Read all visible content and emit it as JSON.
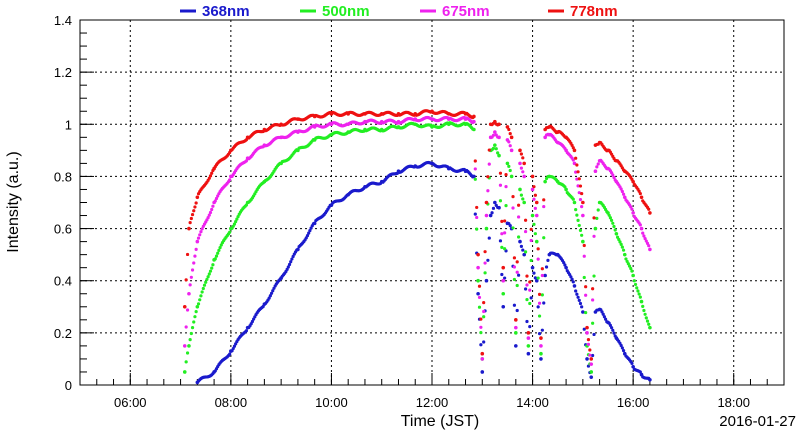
{
  "chart_data": {
    "type": "scatter",
    "xlabel": "Time (JST)",
    "ylabel": "Intensity (a.u.)",
    "date_label": "2016-01-27",
    "xlim": [
      "05:00",
      "19:00"
    ],
    "ylim": [
      0,
      1.4
    ],
    "x_ticks": [
      "06:00",
      "08:00",
      "10:00",
      "12:00",
      "14:00",
      "16:00",
      "18:00"
    ],
    "y_ticks": [
      "0",
      "0.2",
      "0.4",
      "0.6",
      "0.8",
      "1",
      "1.2",
      "1.4"
    ],
    "grid": true,
    "legend_position": "top",
    "series": [
      {
        "name": "368nm",
        "color": "#1a1acc",
        "points": [
          [
            "07:20",
            0.01
          ],
          [
            "07:40",
            0.05
          ],
          [
            "08:00",
            0.13
          ],
          [
            "08:20",
            0.22
          ],
          [
            "08:40",
            0.31
          ],
          [
            "09:00",
            0.41
          ],
          [
            "09:20",
            0.52
          ],
          [
            "09:40",
            0.62
          ],
          [
            "10:00",
            0.69
          ],
          [
            "10:20",
            0.73
          ],
          [
            "10:40",
            0.76
          ],
          [
            "11:00",
            0.78
          ],
          [
            "11:20",
            0.82
          ],
          [
            "11:40",
            0.84
          ],
          [
            "12:00",
            0.85
          ],
          [
            "12:20",
            0.83
          ],
          [
            "12:40",
            0.82
          ],
          [
            "12:50",
            0.8
          ],
          [
            "12:55",
            0.35
          ],
          [
            "13:00",
            0.05
          ],
          [
            "13:05",
            0.4
          ],
          [
            "13:10",
            0.65
          ],
          [
            "13:15",
            0.7
          ],
          [
            "13:20",
            0.68
          ],
          [
            "13:25",
            0.3
          ],
          [
            "13:30",
            0.62
          ],
          [
            "13:35",
            0.6
          ],
          [
            "13:40",
            0.15
          ],
          [
            "13:45",
            0.55
          ],
          [
            "13:50",
            0.5
          ],
          [
            "13:55",
            0.12
          ],
          [
            "14:00",
            0.45
          ],
          [
            "14:05",
            0.4
          ],
          [
            "14:10",
            0.1
          ],
          [
            "14:15",
            0.42
          ],
          [
            "14:20",
            0.5
          ],
          [
            "14:30",
            0.5
          ],
          [
            "14:40",
            0.45
          ],
          [
            "14:50",
            0.38
          ],
          [
            "15:00",
            0.28
          ],
          [
            "15:05",
            0.1
          ],
          [
            "15:10",
            0.03
          ],
          [
            "15:15",
            0.28
          ],
          [
            "15:20",
            0.29
          ],
          [
            "15:30",
            0.24
          ],
          [
            "15:40",
            0.18
          ],
          [
            "15:50",
            0.12
          ],
          [
            "16:00",
            0.07
          ],
          [
            "16:10",
            0.04
          ],
          [
            "16:20",
            0.02
          ]
        ]
      },
      {
        "name": "500nm",
        "color": "#22ee22",
        "points": [
          [
            "07:05",
            0.05
          ],
          [
            "07:10",
            0.15
          ],
          [
            "07:20",
            0.3
          ],
          [
            "07:40",
            0.48
          ],
          [
            "08:00",
            0.6
          ],
          [
            "08:20",
            0.7
          ],
          [
            "08:40",
            0.78
          ],
          [
            "09:00",
            0.85
          ],
          [
            "09:20",
            0.9
          ],
          [
            "09:40",
            0.94
          ],
          [
            "10:00",
            0.96
          ],
          [
            "10:20",
            0.97
          ],
          [
            "10:40",
            0.98
          ],
          [
            "11:00",
            0.98
          ],
          [
            "11:20",
            0.99
          ],
          [
            "11:40",
            1.0
          ],
          [
            "12:00",
            0.99
          ],
          [
            "12:20",
            1.0
          ],
          [
            "12:40",
            1.0
          ],
          [
            "12:50",
            0.98
          ],
          [
            "12:55",
            0.4
          ],
          [
            "13:00",
            0.1
          ],
          [
            "13:05",
            0.6
          ],
          [
            "13:10",
            0.9
          ],
          [
            "13:15",
            0.92
          ],
          [
            "13:20",
            0.88
          ],
          [
            "13:25",
            0.35
          ],
          [
            "13:30",
            0.85
          ],
          [
            "13:35",
            0.8
          ],
          [
            "13:40",
            0.2
          ],
          [
            "13:45",
            0.75
          ],
          [
            "13:50",
            0.7
          ],
          [
            "13:55",
            0.15
          ],
          [
            "14:00",
            0.65
          ],
          [
            "14:05",
            0.55
          ],
          [
            "14:10",
            0.12
          ],
          [
            "14:15",
            0.78
          ],
          [
            "14:20",
            0.8
          ],
          [
            "14:30",
            0.78
          ],
          [
            "14:40",
            0.75
          ],
          [
            "14:50",
            0.7
          ],
          [
            "15:00",
            0.55
          ],
          [
            "15:05",
            0.15
          ],
          [
            "15:10",
            0.05
          ],
          [
            "15:15",
            0.6
          ],
          [
            "15:20",
            0.7
          ],
          [
            "15:30",
            0.66
          ],
          [
            "15:40",
            0.58
          ],
          [
            "15:50",
            0.5
          ],
          [
            "16:00",
            0.42
          ],
          [
            "16:10",
            0.32
          ],
          [
            "16:20",
            0.22
          ]
        ]
      },
      {
        "name": "675nm",
        "color": "#ee22ee",
        "points": [
          [
            "07:05",
            0.15
          ],
          [
            "07:10",
            0.35
          ],
          [
            "07:20",
            0.55
          ],
          [
            "07:40",
            0.7
          ],
          [
            "08:00",
            0.8
          ],
          [
            "08:20",
            0.87
          ],
          [
            "08:40",
            0.92
          ],
          [
            "09:00",
            0.95
          ],
          [
            "09:20",
            0.97
          ],
          [
            "09:40",
            0.99
          ],
          [
            "10:00",
            1.0
          ],
          [
            "10:20",
            1.0
          ],
          [
            "10:40",
            1.01
          ],
          [
            "11:00",
            1.01
          ],
          [
            "11:20",
            1.01
          ],
          [
            "11:40",
            1.02
          ],
          [
            "12:00",
            1.02
          ],
          [
            "12:20",
            1.02
          ],
          [
            "12:40",
            1.02
          ],
          [
            "12:50",
            1.01
          ],
          [
            "12:55",
            0.45
          ],
          [
            "13:00",
            0.1
          ],
          [
            "13:05",
            0.65
          ],
          [
            "13:10",
            0.95
          ],
          [
            "13:15",
            0.97
          ],
          [
            "13:20",
            0.95
          ],
          [
            "13:25",
            0.4
          ],
          [
            "13:30",
            0.94
          ],
          [
            "13:35",
            0.9
          ],
          [
            "13:40",
            0.22
          ],
          [
            "13:45",
            0.85
          ],
          [
            "13:50",
            0.8
          ],
          [
            "13:55",
            0.18
          ],
          [
            "14:00",
            0.75
          ],
          [
            "14:05",
            0.65
          ],
          [
            "14:10",
            0.15
          ],
          [
            "14:15",
            0.95
          ],
          [
            "14:20",
            0.96
          ],
          [
            "14:30",
            0.93
          ],
          [
            "14:40",
            0.9
          ],
          [
            "14:50",
            0.85
          ],
          [
            "15:00",
            0.65
          ],
          [
            "15:05",
            0.2
          ],
          [
            "15:10",
            0.08
          ],
          [
            "15:15",
            0.82
          ],
          [
            "15:20",
            0.86
          ],
          [
            "15:30",
            0.83
          ],
          [
            "15:40",
            0.78
          ],
          [
            "15:50",
            0.72
          ],
          [
            "16:00",
            0.66
          ],
          [
            "16:10",
            0.6
          ],
          [
            "16:20",
            0.52
          ]
        ]
      },
      {
        "name": "778nm",
        "color": "#ee1111",
        "points": [
          [
            "07:05",
            0.3
          ],
          [
            "07:10",
            0.6
          ],
          [
            "07:20",
            0.72
          ],
          [
            "07:40",
            0.83
          ],
          [
            "08:00",
            0.9
          ],
          [
            "08:20",
            0.95
          ],
          [
            "08:40",
            0.98
          ],
          [
            "09:00",
            1.0
          ],
          [
            "09:20",
            1.02
          ],
          [
            "09:40",
            1.03
          ],
          [
            "10:00",
            1.04
          ],
          [
            "10:20",
            1.04
          ],
          [
            "10:40",
            1.04
          ],
          [
            "11:00",
            1.04
          ],
          [
            "11:20",
            1.04
          ],
          [
            "11:40",
            1.04
          ],
          [
            "12:00",
            1.05
          ],
          [
            "12:20",
            1.04
          ],
          [
            "12:40",
            1.04
          ],
          [
            "12:50",
            1.03
          ],
          [
            "12:55",
            0.5
          ],
          [
            "13:00",
            0.12
          ],
          [
            "13:05",
            0.7
          ],
          [
            "13:10",
            1.0
          ],
          [
            "13:15",
            1.01
          ],
          [
            "13:20",
            1.0
          ],
          [
            "13:25",
            0.45
          ],
          [
            "13:30",
            0.99
          ],
          [
            "13:35",
            0.95
          ],
          [
            "13:40",
            0.25
          ],
          [
            "13:45",
            0.9
          ],
          [
            "13:50",
            0.85
          ],
          [
            "13:55",
            0.2
          ],
          [
            "14:00",
            0.8
          ],
          [
            "14:05",
            0.7
          ],
          [
            "14:10",
            0.18
          ],
          [
            "14:15",
            0.98
          ],
          [
            "14:20",
            0.99
          ],
          [
            "14:30",
            0.97
          ],
          [
            "14:40",
            0.95
          ],
          [
            "14:50",
            0.9
          ],
          [
            "15:00",
            0.7
          ],
          [
            "15:05",
            0.22
          ],
          [
            "15:10",
            0.1
          ],
          [
            "15:15",
            0.92
          ],
          [
            "15:20",
            0.93
          ],
          [
            "15:30",
            0.9
          ],
          [
            "15:40",
            0.86
          ],
          [
            "15:50",
            0.82
          ],
          [
            "16:00",
            0.78
          ],
          [
            "16:10",
            0.72
          ],
          [
            "16:20",
            0.66
          ]
        ]
      }
    ]
  }
}
